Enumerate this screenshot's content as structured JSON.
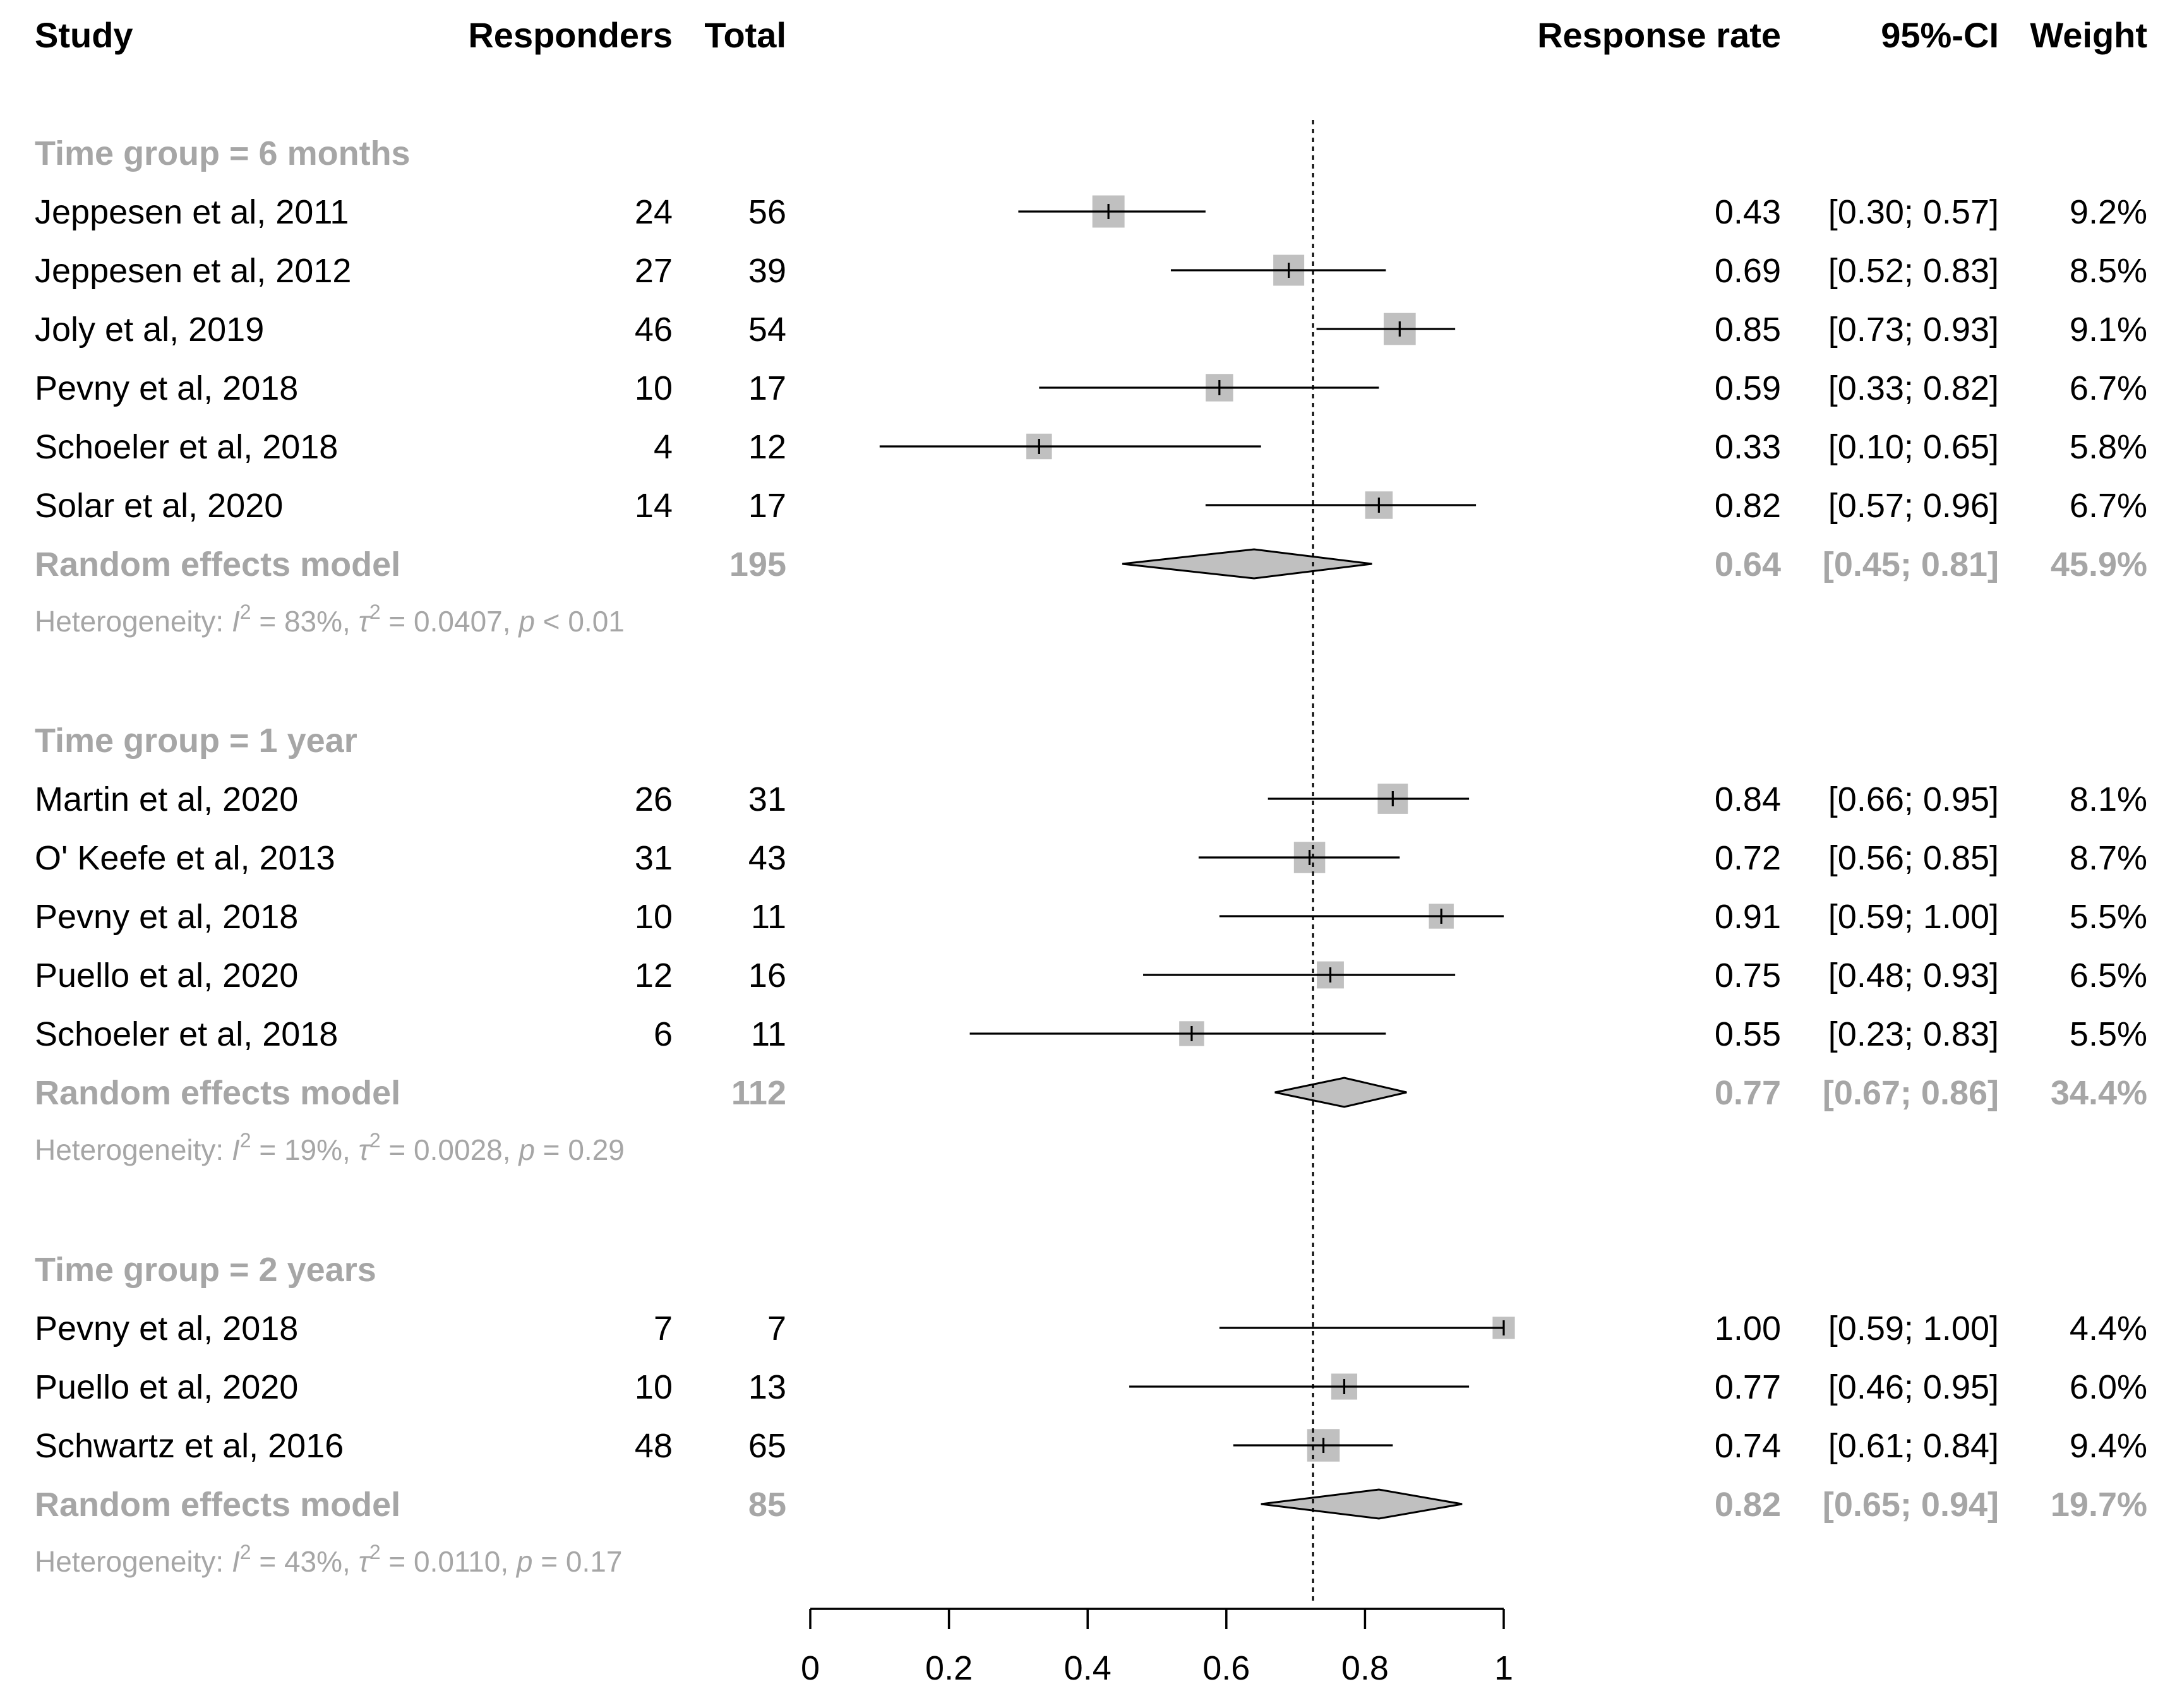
{
  "headers": {
    "study": "Study",
    "responders": "Responders",
    "total": "Total",
    "response_rate": "Response rate",
    "ci": "95%-CI",
    "weight": "Weight"
  },
  "colors": {
    "summary_gray": "#a6a6a6",
    "box_gray": "#c0c0c0",
    "line": "#000000"
  },
  "chart_data": {
    "type": "forest",
    "xlim": [
      0,
      1
    ],
    "xticks": [
      "0",
      "0.2",
      "0.4",
      "0.6",
      "0.8",
      "1"
    ],
    "xtick_values": [
      0,
      0.2,
      0.4,
      0.6,
      0.8,
      1
    ],
    "overall_reference": 0.725,
    "groups": [
      {
        "label": "Time group = 6 months",
        "studies": [
          {
            "study": "Jeppesen et al, 2011",
            "responders": "24",
            "total": "56",
            "rate": 0.43,
            "lower": 0.3,
            "upper": 0.57,
            "rate_text": "0.43",
            "ci_text": "[0.30; 0.57]",
            "weight_text": "9.2%",
            "weight": 9.2
          },
          {
            "study": "Jeppesen et al, 2012",
            "responders": "27",
            "total": "39",
            "rate": 0.69,
            "lower": 0.52,
            "upper": 0.83,
            "rate_text": "0.69",
            "ci_text": "[0.52; 0.83]",
            "weight_text": "8.5%",
            "weight": 8.5
          },
          {
            "study": "Joly et al, 2019",
            "responders": "46",
            "total": "54",
            "rate": 0.85,
            "lower": 0.73,
            "upper": 0.93,
            "rate_text": "0.85",
            "ci_text": "[0.73; 0.93]",
            "weight_text": "9.1%",
            "weight": 9.1
          },
          {
            "study": "Pevny et al, 2018",
            "responders": "10",
            "total": "17",
            "rate": 0.59,
            "lower": 0.33,
            "upper": 0.82,
            "rate_text": "0.59",
            "ci_text": "[0.33; 0.82]",
            "weight_text": "6.7%",
            "weight": 6.7
          },
          {
            "study": "Schoeler et al, 2018",
            "responders": "4",
            "total": "12",
            "rate": 0.33,
            "lower": 0.1,
            "upper": 0.65,
            "rate_text": "0.33",
            "ci_text": "[0.10; 0.65]",
            "weight_text": "5.8%",
            "weight": 5.8
          },
          {
            "study": "Solar et al, 2020",
            "responders": "14",
            "total": "17",
            "rate": 0.82,
            "lower": 0.57,
            "upper": 0.96,
            "rate_text": "0.82",
            "ci_text": "[0.57; 0.96]",
            "weight_text": "6.7%",
            "weight": 6.7
          }
        ],
        "summary": {
          "label": "Random effects model",
          "total": "195",
          "rate": 0.64,
          "lower": 0.45,
          "upper": 0.81,
          "rate_text": "0.64",
          "ci_text": "[0.45; 0.81]",
          "weight_text": "45.9%"
        },
        "heterogeneity": {
          "prefix": "Heterogeneity: ",
          "i2_value": " = 83%, ",
          "tau2_value": " = 0.0407, ",
          "p_value": " < 0.01"
        }
      },
      {
        "label": "Time group = 1 year",
        "studies": [
          {
            "study": "Martin et al, 2020",
            "responders": "26",
            "total": "31",
            "rate": 0.84,
            "lower": 0.66,
            "upper": 0.95,
            "rate_text": "0.84",
            "ci_text": "[0.66; 0.95]",
            "weight_text": "8.1%",
            "weight": 8.1
          },
          {
            "study": "O' Keefe et al, 2013",
            "responders": "31",
            "total": "43",
            "rate": 0.72,
            "lower": 0.56,
            "upper": 0.85,
            "rate_text": "0.72",
            "ci_text": "[0.56; 0.85]",
            "weight_text": "8.7%",
            "weight": 8.7
          },
          {
            "study": "Pevny et al, 2018",
            "responders": "10",
            "total": "11",
            "rate": 0.91,
            "lower": 0.59,
            "upper": 1.0,
            "rate_text": "0.91",
            "ci_text": "[0.59; 1.00]",
            "weight_text": "5.5%",
            "weight": 5.5
          },
          {
            "study": "Puello et al, 2020",
            "responders": "12",
            "total": "16",
            "rate": 0.75,
            "lower": 0.48,
            "upper": 0.93,
            "rate_text": "0.75",
            "ci_text": "[0.48; 0.93]",
            "weight_text": "6.5%",
            "weight": 6.5
          },
          {
            "study": "Schoeler et al, 2018",
            "responders": "6",
            "total": "11",
            "rate": 0.55,
            "lower": 0.23,
            "upper": 0.83,
            "rate_text": "0.55",
            "ci_text": "[0.23; 0.83]",
            "weight_text": "5.5%",
            "weight": 5.5
          }
        ],
        "summary": {
          "label": "Random effects model",
          "total": "112",
          "rate": 0.77,
          "lower": 0.67,
          "upper": 0.86,
          "rate_text": "0.77",
          "ci_text": "[0.67; 0.86]",
          "weight_text": "34.4%"
        },
        "heterogeneity": {
          "prefix": "Heterogeneity: ",
          "i2_value": " = 19%, ",
          "tau2_value": " = 0.0028, ",
          "p_value": " = 0.29"
        }
      },
      {
        "label": "Time group = 2 years",
        "studies": [
          {
            "study": "Pevny et al, 2018",
            "responders": "7",
            "total": "7",
            "rate": 1.0,
            "lower": 0.59,
            "upper": 1.0,
            "rate_text": "1.00",
            "ci_text": "[0.59; 1.00]",
            "weight_text": "4.4%",
            "weight": 4.4
          },
          {
            "study": "Puello et al, 2020",
            "responders": "10",
            "total": "13",
            "rate": 0.77,
            "lower": 0.46,
            "upper": 0.95,
            "rate_text": "0.77",
            "ci_text": "[0.46; 0.95]",
            "weight_text": "6.0%",
            "weight": 6.0
          },
          {
            "study": "Schwartz et al, 2016",
            "responders": "48",
            "total": "65",
            "rate": 0.74,
            "lower": 0.61,
            "upper": 0.84,
            "rate_text": "0.74",
            "ci_text": "[0.61; 0.84]",
            "weight_text": "9.4%",
            "weight": 9.4
          }
        ],
        "summary": {
          "label": "Random effects model",
          "total": "85",
          "rate": 0.82,
          "lower": 0.65,
          "upper": 0.94,
          "rate_text": "0.82",
          "ci_text": "[0.65; 0.94]",
          "weight_text": "19.7%"
        },
        "heterogeneity": {
          "prefix": "Heterogeneity: ",
          "i2_value": " = 43%, ",
          "tau2_value": " = 0.0110, ",
          "p_value": " = 0.17"
        }
      }
    ],
    "het_symbols": {
      "i": "I",
      "two": "2",
      "tau": "τ",
      "p": "p"
    }
  }
}
